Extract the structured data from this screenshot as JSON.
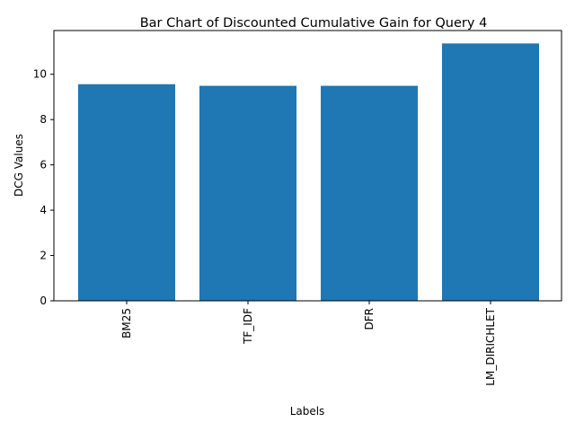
{
  "chart_data": {
    "type": "bar",
    "title": "Bar Chart of Discounted Cumulative Gain for Query 4",
    "xlabel": "Labels",
    "ylabel": "DCG Values",
    "categories": [
      "BM25",
      "TF_IDF",
      "DFR",
      "LM_DIRICHLET"
    ],
    "values": [
      9.56,
      9.49,
      9.49,
      11.36
    ],
    "ylim": [
      0,
      11.93
    ],
    "yticks": [
      0,
      2,
      4,
      6,
      8,
      10
    ],
    "bar_color": "#1f77b4",
    "grid": false,
    "legend": "none"
  }
}
